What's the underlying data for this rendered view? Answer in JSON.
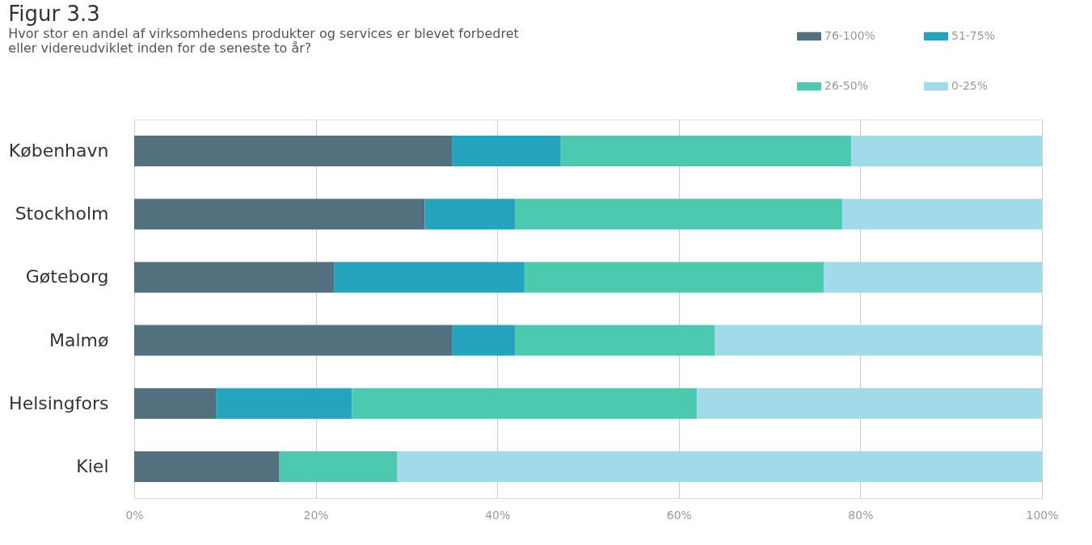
{
  "chart_data": {
    "type": "bar",
    "orientation": "horizontal",
    "stacked": true,
    "title": "Figur 3.3",
    "subtitle": "Hvor stor en andel af virksomhedens produkter og services er blevet forbedret eller videreudviklet inden for de seneste to år?",
    "categories": [
      "København",
      "Stockholm",
      "Gøteborg",
      "Malmø",
      "Helsingfors",
      "Kiel"
    ],
    "series": [
      {
        "name": "76-100%",
        "color": "#52707e",
        "values": [
          35,
          32,
          22,
          35,
          9,
          16
        ]
      },
      {
        "name": "51-75%",
        "color": "#24a5bd",
        "values": [
          12,
          10,
          21,
          7,
          15,
          0
        ]
      },
      {
        "name": "26-50%",
        "color": "#4dc9b0",
        "values": [
          32,
          36,
          33,
          22,
          38,
          13
        ]
      },
      {
        "name": "0-25%",
        "color": "#a1dbea",
        "values": [
          21,
          22,
          24,
          36,
          38,
          71
        ]
      }
    ],
    "xlim": [
      0,
      100
    ],
    "xticks": [
      {
        "value": 0,
        "label": "0%"
      },
      {
        "value": 20,
        "label": "20%"
      },
      {
        "value": 40,
        "label": "40%"
      },
      {
        "value": 60,
        "label": "60%"
      },
      {
        "value": 80,
        "label": "80%"
      },
      {
        "value": 100,
        "label": "100%"
      }
    ],
    "grid": "x",
    "legend": "top right"
  }
}
